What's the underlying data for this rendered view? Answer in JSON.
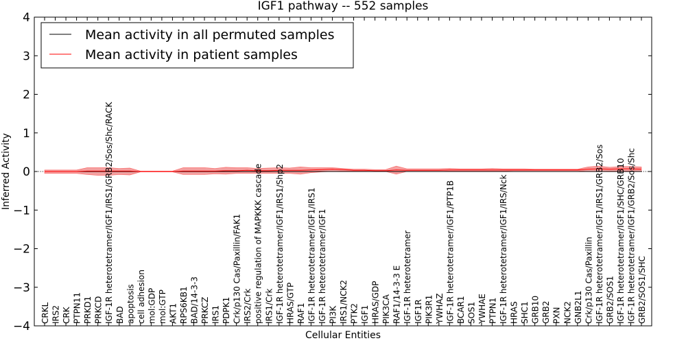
{
  "chart_data": {
    "type": "line",
    "title": "IGF1 pathway -- 552 samples",
    "xlabel": "Cellular Entities",
    "ylabel": "Inferred Activity",
    "ylim": [
      -4,
      4
    ],
    "yticks": [
      "−4",
      "−3",
      "−2",
      "−1",
      "0",
      "1",
      "2",
      "3",
      "4"
    ],
    "ytick_values": [
      -4,
      -3,
      -2,
      -1,
      0,
      1,
      2,
      3,
      4
    ],
    "legend_position": "top-left",
    "reference_line": 0,
    "categories": [
      "CRKL",
      "IRS2",
      "CRK",
      "PTPN11",
      "PRKD1",
      "PRKCD",
      "IGF-1R heterotetramer/IGF1/IRS1/GRB2/Sos/Shc/RACK",
      "BAD",
      "apoptosis",
      "cell adhesion",
      "mol:GDP",
      "mol:GTP",
      "AKT1",
      "RPS6KB1",
      "BAD/14-3-3",
      "PRKCZ",
      "IRS1",
      "PDPK1",
      "Crk/p130 Cas/Paxillin/FAK1",
      "IRS2/Crk",
      "positive regulation of MAPKKK cascade",
      "IRS1/Crk",
      "IGF-1R heterotetramer/IGF1/IRS1/Shp2",
      "HRAS/GTP",
      "RAF1",
      "IGF-1R heterotetramer/IGF1/IRS1",
      "IGF-1R heterotetramer/IGF1",
      "PI3K",
      "IRS1/NCK2",
      "PTK2",
      "IGF1",
      "HRAS/GDP",
      "PIK3CA",
      "RAF1/14-3-3 E",
      "IGF-1R heterotetramer",
      "IGF1R",
      "PIK3R1",
      "YWHAZ",
      "IGF-1R heterotetramer/IGF1/PTP1B",
      "BCAR1",
      "SOS1",
      "YWHAE",
      "PTPN1",
      "IGF-1R heterotetramer/IGF1/IRS/Nck",
      "HRAS",
      "SHC1",
      "GRB10",
      "GRB2",
      "PXN",
      "NCK2",
      "GNB2L1",
      "Crk/p130 Cas/Paxillin",
      "IGF-1R heterotetramer/IGF1/IRS1/GRB2/Sos",
      "GRB2/SOS1",
      "IGF-1R heterotetramer/IGF1/SHC/GRB10",
      "IGF-1R heterotetramer/IGF1/GRB2/Sos/Shc",
      "GRB2/SOS1/SHC"
    ],
    "series": [
      {
        "name": "Mean activity in all permuted samples",
        "color": "#000000",
        "values": [
          0.0,
          0.0,
          0.0,
          0.0,
          0.0,
          0.0,
          0.0,
          0.0,
          0.0,
          0.0,
          0.0,
          0.0,
          0.0,
          0.0,
          0.0,
          0.0,
          0.0,
          0.0,
          0.0,
          0.0,
          0.0,
          0.0,
          0.0,
          0.0,
          0.0,
          0.0,
          0.0,
          0.0,
          0.0,
          0.0,
          0.0,
          0.0,
          0.0,
          0.0,
          0.0,
          0.0,
          0.0,
          0.0,
          0.0,
          0.0,
          0.0,
          0.0,
          0.0,
          0.0,
          0.0,
          0.0,
          0.0,
          0.0,
          0.0,
          0.0,
          0.0,
          0.0,
          0.0,
          0.0,
          0.0,
          0.0,
          0.0
        ]
      },
      {
        "name": "Mean activity in patient samples",
        "color": "#ff0000",
        "band_color": "#f08080",
        "values": [
          0.0,
          0.0,
          0.0,
          0.0,
          0.01,
          0.01,
          0.01,
          0.01,
          0.01,
          0.0,
          0.0,
          0.0,
          0.0,
          0.01,
          0.01,
          0.01,
          0.01,
          0.02,
          0.02,
          0.03,
          0.02,
          0.02,
          0.03,
          0.03,
          0.03,
          0.04,
          0.05,
          0.06,
          0.05,
          0.03,
          0.03,
          0.02,
          0.02,
          0.04,
          0.03,
          0.03,
          0.03,
          0.03,
          0.04,
          0.04,
          0.04,
          0.04,
          0.04,
          0.04,
          0.04,
          0.04,
          0.04,
          0.04,
          0.04,
          0.04,
          0.04,
          0.06,
          0.07,
          0.06,
          0.07,
          0.07,
          0.06
        ],
        "band_upper": [
          0.04,
          0.04,
          0.04,
          0.04,
          0.1,
          0.1,
          0.1,
          0.08,
          0.09,
          0.01,
          0.01,
          0.01,
          0.01,
          0.1,
          0.1,
          0.1,
          0.08,
          0.11,
          0.1,
          0.1,
          0.08,
          0.09,
          0.1,
          0.09,
          0.12,
          0.1,
          0.1,
          0.1,
          0.08,
          0.06,
          0.06,
          0.05,
          0.05,
          0.14,
          0.07,
          0.07,
          0.07,
          0.07,
          0.08,
          0.07,
          0.07,
          0.07,
          0.08,
          0.07,
          0.07,
          0.07,
          0.06,
          0.06,
          0.06,
          0.06,
          0.06,
          0.12,
          0.14,
          0.11,
          0.13,
          0.13,
          0.12
        ],
        "band_lower": [
          -0.05,
          -0.05,
          -0.05,
          -0.05,
          -0.08,
          -0.1,
          -0.1,
          -0.08,
          -0.09,
          -0.01,
          -0.01,
          -0.01,
          -0.01,
          -0.08,
          -0.08,
          -0.08,
          -0.06,
          -0.07,
          -0.05,
          -0.05,
          -0.05,
          -0.05,
          -0.05,
          -0.05,
          -0.07,
          -0.03,
          -0.01,
          0.0,
          0.01,
          0.01,
          0.01,
          0.0,
          0.0,
          -0.07,
          0.0,
          0.0,
          0.0,
          0.0,
          0.01,
          0.01,
          0.01,
          0.01,
          0.01,
          0.01,
          0.02,
          0.02,
          0.02,
          0.02,
          0.02,
          0.02,
          0.02,
          0.0,
          0.0,
          0.01,
          0.01,
          0.01,
          0.0
        ]
      }
    ]
  }
}
